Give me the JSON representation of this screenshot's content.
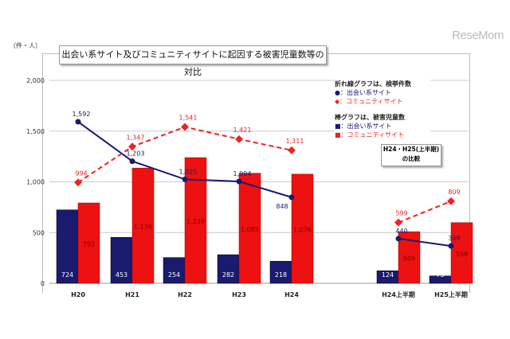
{
  "watermark": "ReseMom",
  "chart_data": {
    "type": "bar",
    "title": "出会い系サイト及びコミュニティサイトに起因する被害児童数等の対比",
    "ylabel": "（件・人）",
    "ylim": [
      0,
      2000
    ],
    "yticks": [
      "0",
      "500",
      "1,000",
      "1,500",
      "2,000"
    ],
    "grid": true,
    "categories": [
      "H20",
      "H21",
      "H22",
      "H23",
      "H24",
      "H24上半期",
      "H25上半期"
    ],
    "series": [
      {
        "name": "出会い系サイト",
        "kind": "bar",
        "color": "#1a1a6e",
        "values": [
          724,
          453,
          254,
          282,
          218,
          124,
          73
        ],
        "labels": [
          "724",
          "453",
          "254",
          "282",
          "218",
          "124",
          "73"
        ]
      },
      {
        "name": "コミュニティサイト",
        "kind": "bar",
        "color": "#ee1111",
        "values": [
          792,
          1136,
          1239,
          1085,
          1076,
          509,
          598
        ],
        "labels": [
          "792",
          "1,136",
          "1,239",
          "1,085",
          "1,076",
          "509",
          "598"
        ]
      },
      {
        "name": "出会い系サイト",
        "kind": "line",
        "color": "#1a1a6e",
        "values": [
          1592,
          1203,
          1025,
          1004,
          848,
          440,
          368
        ],
        "labels": [
          "1,592",
          "1,203",
          "1,025",
          "1,004",
          "848",
          "440",
          "368"
        ]
      },
      {
        "name": "コミュニティサイト",
        "kind": "line",
        "color": "#ee2222",
        "values": [
          994,
          1347,
          1541,
          1421,
          1311,
          599,
          809
        ],
        "labels": [
          "994",
          "1,347",
          "1,541",
          "1,421",
          "1,311",
          "599",
          "809"
        ]
      }
    ],
    "legend": {
      "placement": "top-right",
      "line_header": "折れ線グラフは、検挙件数",
      "line_items": [
        "●：出会い系サイト",
        "◆：コミュニティサイト"
      ],
      "bar_header": "棒グラフは、被害児童数",
      "bar_items": [
        "■：出会い系サイト",
        "■：コミュニティサイト"
      ]
    },
    "annotation": [
      "H24・H25(上半期)",
      "の比較"
    ]
  }
}
